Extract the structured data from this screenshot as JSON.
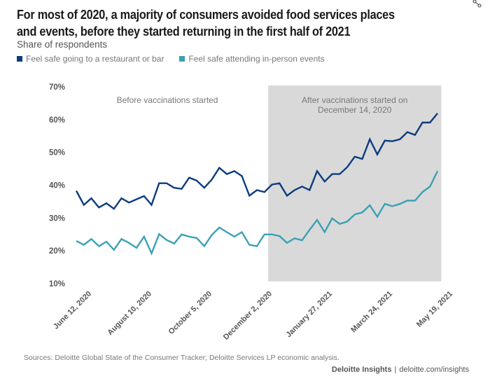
{
  "header": {
    "title": "For most of 2020, a majority of consumers avoided food services places and events, before they started returning in the first half of 2021",
    "subtitle": "Share of respondents"
  },
  "icons": {
    "share": "share-icon"
  },
  "chart_data": {
    "type": "line",
    "title": "For most of 2020, a majority of consumers avoided food services places and events, before they started returning in the first half of 2021",
    "subtitle": "Share of respondents",
    "xlabel": "",
    "ylabel": "Share of respondents",
    "ylim": [
      10,
      70
    ],
    "yticks": [
      10,
      20,
      30,
      40,
      50,
      60,
      70
    ],
    "ytick_labels": [
      "10%",
      "20%",
      "30%",
      "40%",
      "50%",
      "60%",
      "70%"
    ],
    "x_tick_labels": [
      {
        "index": 0,
        "label": "June 12, 2020"
      },
      {
        "index": 8,
        "label": "August 10, 2020"
      },
      {
        "index": 16,
        "label": "October 5, 2020"
      },
      {
        "index": 24,
        "label": "December 2, 2020"
      },
      {
        "index": 32,
        "label": "January 27, 2021"
      },
      {
        "index": 40,
        "label": "March 24, 2021"
      },
      {
        "index": 48,
        "label": "May 19, 2021"
      }
    ],
    "grid": false,
    "legend_position": "top-left",
    "series": [
      {
        "name": "Feel safe going to a restaurant or bar",
        "color": "#0d3c7e",
        "values": [
          38.3,
          34,
          36,
          33.2,
          34.5,
          32.8,
          36,
          34.7,
          35.7,
          36.7,
          34,
          40.6,
          40.6,
          39.2,
          38.9,
          42.3,
          41.4,
          39.2,
          41.7,
          45.3,
          43.4,
          44.3,
          42.8,
          36.8,
          38.5,
          37.9,
          40.2,
          40.6,
          36.8,
          38.5,
          39.6,
          38.5,
          44.3,
          41.1,
          43.4,
          43.4,
          45.5,
          48.7,
          48,
          54,
          49.4,
          53.6,
          53.4,
          54,
          56.2,
          55.3,
          59.1,
          59.1,
          61.9
        ]
      },
      {
        "name": "Feel safe attending in-person events",
        "color": "#3aa1b5",
        "values": [
          23,
          21.8,
          23.6,
          21.4,
          22.8,
          20.3,
          23.6,
          22.4,
          20.9,
          24.3,
          19.2,
          25.1,
          23.3,
          22.2,
          25,
          24.3,
          23.9,
          21.4,
          24.8,
          27.1,
          25.7,
          24.3,
          25.7,
          21.8,
          21.4,
          25,
          25,
          24.5,
          22.4,
          23.8,
          23.2,
          26.4,
          29.4,
          25.7,
          29.9,
          28.2,
          28.9,
          31.1,
          31.7,
          33.9,
          30.4,
          34.3,
          33.6,
          34.3,
          35.3,
          35.3,
          37.9,
          39.6,
          44.3
        ]
      }
    ],
    "shaded_region": {
      "start_index": 25.5,
      "end_index": 48.5,
      "color": "#d9d9d9",
      "label_lines": [
        "After vaccinations started on",
        "December 14, 2020"
      ]
    },
    "annotations": [
      {
        "text": "Before vaccinations started",
        "region": "before"
      }
    ]
  },
  "footer": {
    "source": "Sources: Deloitte Global State of the Consumer Tracker; Deloitte Services LP economic analysis.",
    "brand": "Deloitte Insights",
    "separator": "|",
    "url": "deloitte.com/insights"
  }
}
